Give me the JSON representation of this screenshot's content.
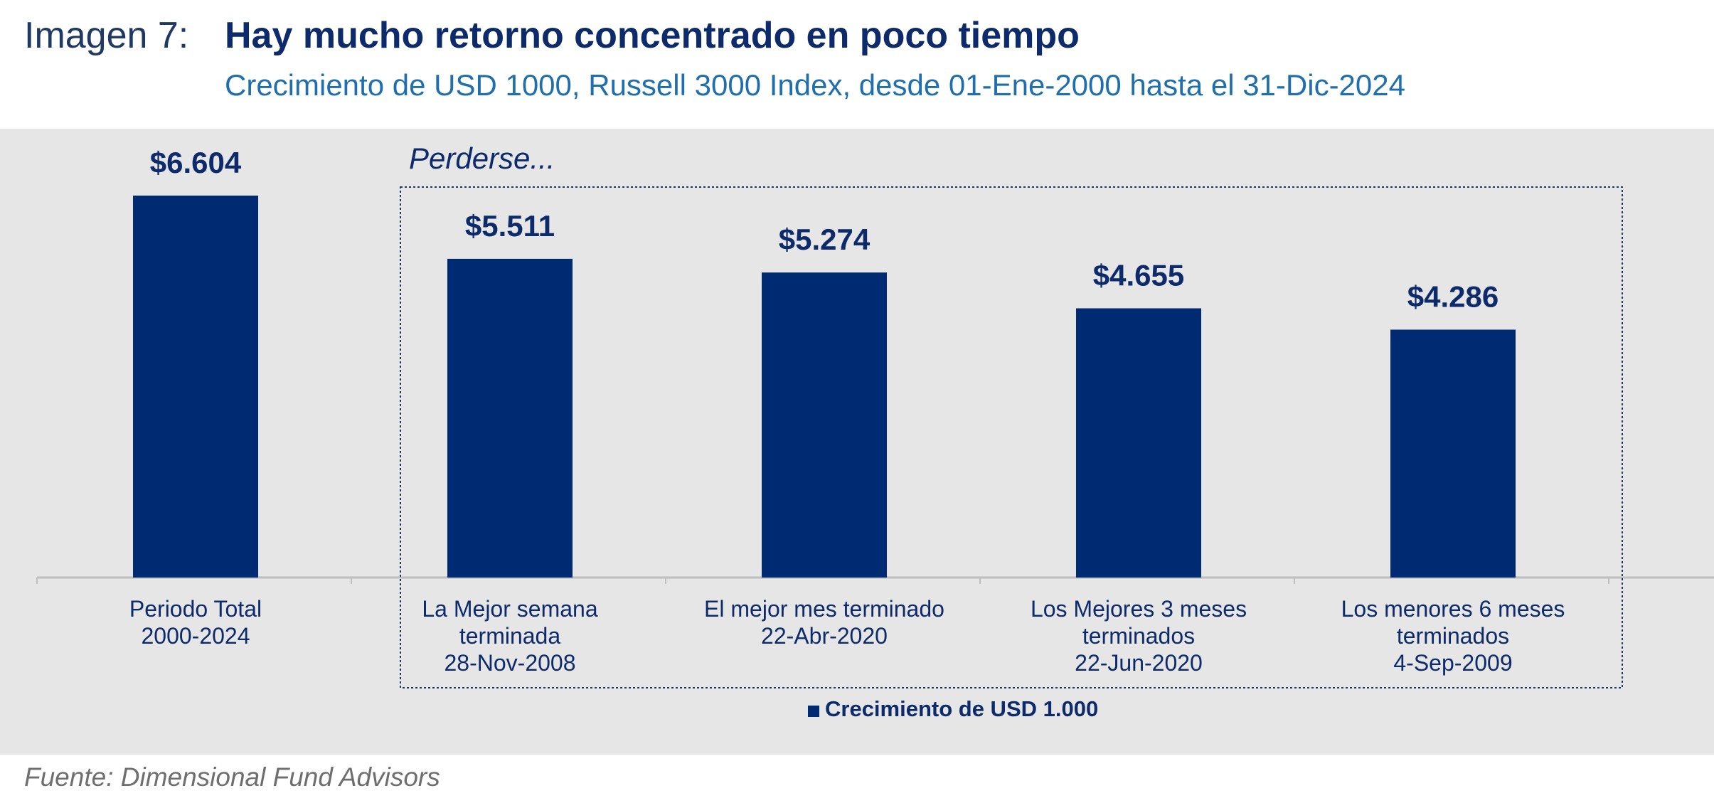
{
  "header": {
    "label": "Imagen 7:",
    "title": "Hay mucho retorno concentrado en poco tiempo",
    "subtitle": "Crecimiento de USD 1000, Russell 3000 Index, desde 01-Ene-2000 hasta el 31-Dic-2024"
  },
  "source": "Fuente: Dimensional Fund Advisors",
  "colors": {
    "bar": "#002b73",
    "background": "#e6e6e6",
    "title": "#0d2a6b",
    "subtitle": "#1f6fae"
  },
  "chart_data": {
    "type": "bar",
    "categories": [
      [
        "Periodo Total",
        "2000-2024"
      ],
      [
        "La Mejor semana",
        "terminada",
        "28-Nov-2008"
      ],
      [
        "El mejor mes terminado",
        "22-Abr-2020"
      ],
      [
        "Los Mejores 3 meses",
        "terminados",
        "22-Jun-2020"
      ],
      [
        "Los menores 6 meses",
        "terminados",
        "4-Sep-2009"
      ]
    ],
    "series": [
      {
        "name": "Crecimiento de USD 1.000",
        "values": [
          6604,
          5511,
          5274,
          4655,
          4286
        ],
        "labels": [
          "$6.604",
          "$5.511",
          "$5.274",
          "$4.655",
          "$4.286"
        ]
      }
    ],
    "ylim": [
      0,
      7000
    ],
    "annotation": "Perderse...",
    "grid": false,
    "legend_position": "bottom"
  }
}
